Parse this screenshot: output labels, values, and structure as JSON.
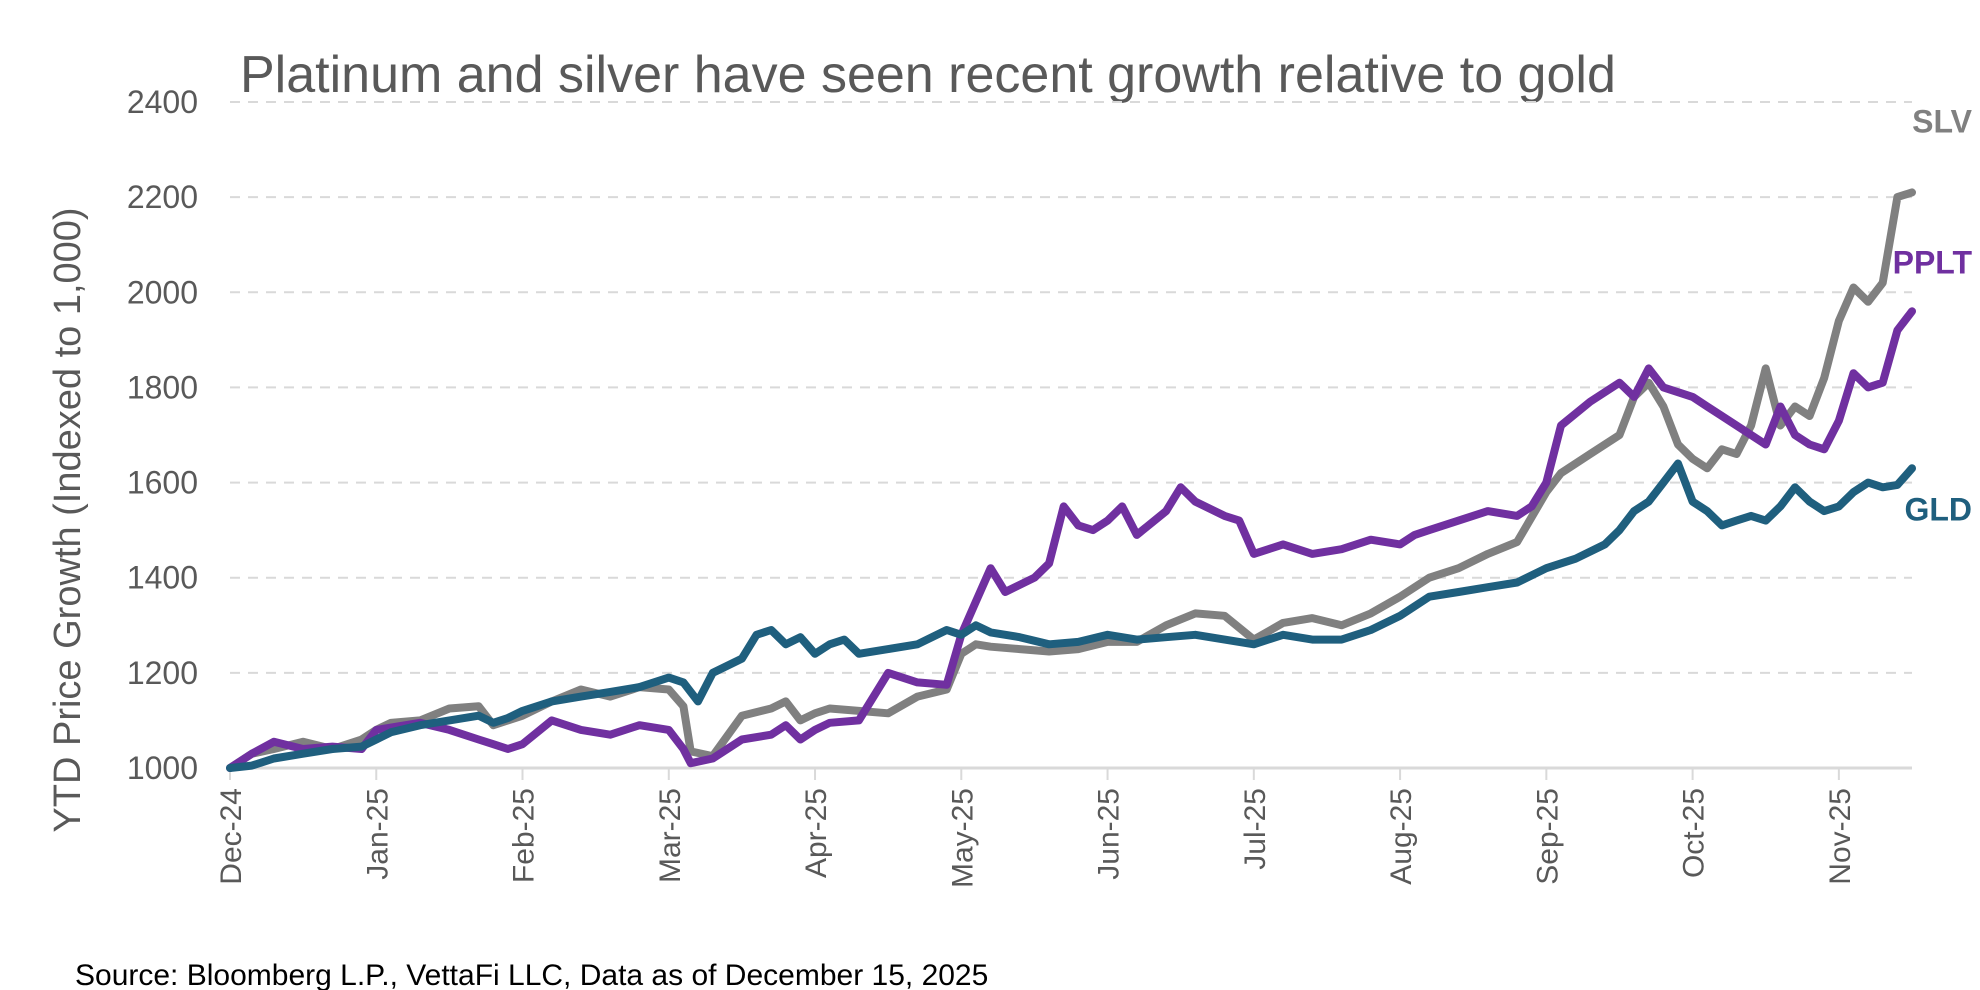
{
  "chart_data": {
    "type": "line",
    "title": "Platinum and silver have seen recent growth relative to gold",
    "ylabel": "YTD Price Growth (Indexed to 1,000)",
    "xlabel": "",
    "ylim": [
      1000,
      2400
    ],
    "y_ticks": [
      "1000",
      "1200",
      "1400",
      "1600",
      "1800",
      "2000",
      "2200",
      "2400"
    ],
    "x_ticks": [
      "Dec-24",
      "Jan-25",
      "Feb-25",
      "Mar-25",
      "Apr-25",
      "May-25",
      "Jun-25",
      "Jul-25",
      "Aug-25",
      "Sep-25",
      "Oct-25",
      "Nov-25"
    ],
    "x_unit": "months since Dec-24",
    "xlim": [
      0,
      11.5
    ],
    "grid": true,
    "legend": "end-of-line labels",
    "series": [
      {
        "name": "SLV",
        "color": "#808080",
        "x": [
          0,
          0.15,
          0.3,
          0.5,
          0.7,
          0.9,
          1.0,
          1.1,
          1.3,
          1.5,
          1.7,
          1.8,
          1.9,
          2.0,
          2.2,
          2.4,
          2.6,
          2.8,
          3.0,
          3.1,
          3.15,
          3.3,
          3.5,
          3.7,
          3.8,
          3.9,
          4.0,
          4.1,
          4.3,
          4.5,
          4.7,
          4.9,
          5.0,
          5.1,
          5.2,
          5.4,
          5.6,
          5.8,
          6.0,
          6.2,
          6.4,
          6.6,
          6.8,
          7.0,
          7.2,
          7.4,
          7.6,
          7.8,
          8.0,
          8.2,
          8.4,
          8.6,
          8.8,
          9.0,
          9.1,
          9.3,
          9.5,
          9.6,
          9.7,
          9.8,
          9.9,
          10.0,
          10.1,
          10.2,
          10.3,
          10.4,
          10.5,
          10.6,
          10.7,
          10.8,
          10.9,
          11.0,
          11.1,
          11.2,
          11.3,
          11.4,
          11.5
        ],
        "values": [
          1000,
          1030,
          1040,
          1055,
          1040,
          1060,
          1080,
          1095,
          1100,
          1125,
          1130,
          1090,
          1100,
          1110,
          1140,
          1165,
          1150,
          1170,
          1165,
          1130,
          1035,
          1025,
          1110,
          1125,
          1140,
          1100,
          1115,
          1125,
          1120,
          1115,
          1150,
          1165,
          1240,
          1260,
          1255,
          1250,
          1245,
          1250,
          1265,
          1265,
          1300,
          1325,
          1320,
          1270,
          1305,
          1315,
          1300,
          1325,
          1360,
          1400,
          1420,
          1450,
          1475,
          1580,
          1620,
          1660,
          1700,
          1780,
          1810,
          1760,
          1680,
          1650,
          1630,
          1670,
          1660,
          1720,
          1840,
          1720,
          1760,
          1740,
          1820,
          1940,
          2010,
          1980,
          2020,
          2200,
          2210
        ]
      },
      {
        "name": "PPLT",
        "color": "#7030a0",
        "x": [
          0,
          0.15,
          0.3,
          0.5,
          0.7,
          0.9,
          1.0,
          1.1,
          1.3,
          1.5,
          1.7,
          1.8,
          1.9,
          2.0,
          2.2,
          2.4,
          2.6,
          2.8,
          3.0,
          3.1,
          3.15,
          3.3,
          3.5,
          3.7,
          3.8,
          3.9,
          4.0,
          4.1,
          4.3,
          4.5,
          4.7,
          4.9,
          5.0,
          5.1,
          5.2,
          5.3,
          5.5,
          5.6,
          5.7,
          5.8,
          5.9,
          6.0,
          6.1,
          6.2,
          6.4,
          6.5,
          6.6,
          6.8,
          6.9,
          7.0,
          7.1,
          7.2,
          7.4,
          7.6,
          7.8,
          8.0,
          8.1,
          8.2,
          8.4,
          8.6,
          8.8,
          8.9,
          9.0,
          9.1,
          9.3,
          9.5,
          9.6,
          9.7,
          9.8,
          9.9,
          10.0,
          10.1,
          10.2,
          10.3,
          10.4,
          10.5,
          10.6,
          10.7,
          10.8,
          10.9,
          11.0,
          11.1,
          11.2,
          11.3,
          11.4,
          11.5
        ],
        "values": [
          1000,
          1030,
          1055,
          1040,
          1045,
          1040,
          1080,
          1085,
          1095,
          1080,
          1060,
          1050,
          1040,
          1050,
          1100,
          1080,
          1070,
          1090,
          1080,
          1040,
          1010,
          1020,
          1060,
          1070,
          1090,
          1060,
          1080,
          1095,
          1100,
          1200,
          1180,
          1175,
          1280,
          1350,
          1420,
          1370,
          1400,
          1430,
          1550,
          1510,
          1500,
          1520,
          1550,
          1490,
          1540,
          1590,
          1560,
          1530,
          1520,
          1450,
          1460,
          1470,
          1450,
          1460,
          1480,
          1470,
          1490,
          1500,
          1520,
          1540,
          1530,
          1550,
          1600,
          1720,
          1770,
          1810,
          1780,
          1840,
          1800,
          1790,
          1780,
          1760,
          1740,
          1720,
          1700,
          1680,
          1760,
          1700,
          1680,
          1670,
          1730,
          1830,
          1800,
          1810,
          1920,
          1960
        ]
      },
      {
        "name": "GLD",
        "color": "#1f5f7e",
        "x": [
          0,
          0.15,
          0.3,
          0.5,
          0.7,
          0.9,
          1.0,
          1.1,
          1.3,
          1.5,
          1.7,
          1.8,
          1.9,
          2.0,
          2.2,
          2.4,
          2.6,
          2.8,
          3.0,
          3.1,
          3.2,
          3.3,
          3.5,
          3.6,
          3.7,
          3.8,
          3.9,
          4.0,
          4.1,
          4.2,
          4.3,
          4.5,
          4.7,
          4.9,
          5.0,
          5.1,
          5.2,
          5.4,
          5.6,
          5.8,
          6.0,
          6.2,
          6.4,
          6.6,
          6.8,
          7.0,
          7.2,
          7.4,
          7.6,
          7.8,
          8.0,
          8.2,
          8.4,
          8.6,
          8.8,
          9.0,
          9.2,
          9.4,
          9.5,
          9.6,
          9.7,
          9.8,
          9.9,
          10.0,
          10.1,
          10.2,
          10.3,
          10.4,
          10.5,
          10.6,
          10.7,
          10.8,
          10.9,
          11.0,
          11.1,
          11.2,
          11.3,
          11.4,
          11.5
        ],
        "values": [
          1000,
          1005,
          1020,
          1030,
          1040,
          1045,
          1060,
          1075,
          1090,
          1100,
          1110,
          1095,
          1105,
          1120,
          1140,
          1150,
          1160,
          1170,
          1190,
          1180,
          1140,
          1200,
          1230,
          1280,
          1290,
          1260,
          1275,
          1240,
          1260,
          1270,
          1240,
          1250,
          1260,
          1290,
          1280,
          1300,
          1285,
          1275,
          1260,
          1265,
          1280,
          1270,
          1275,
          1280,
          1270,
          1260,
          1280,
          1270,
          1270,
          1290,
          1320,
          1360,
          1370,
          1380,
          1390,
          1420,
          1440,
          1470,
          1500,
          1540,
          1560,
          1600,
          1640,
          1560,
          1540,
          1510,
          1520,
          1530,
          1520,
          1550,
          1590,
          1560,
          1540,
          1550,
          1580,
          1600,
          1590,
          1595,
          1630
        ]
      }
    ]
  },
  "source_note": "Source: Bloomberg L.P., VettaFi LLC, Data as of December 15, 2025"
}
